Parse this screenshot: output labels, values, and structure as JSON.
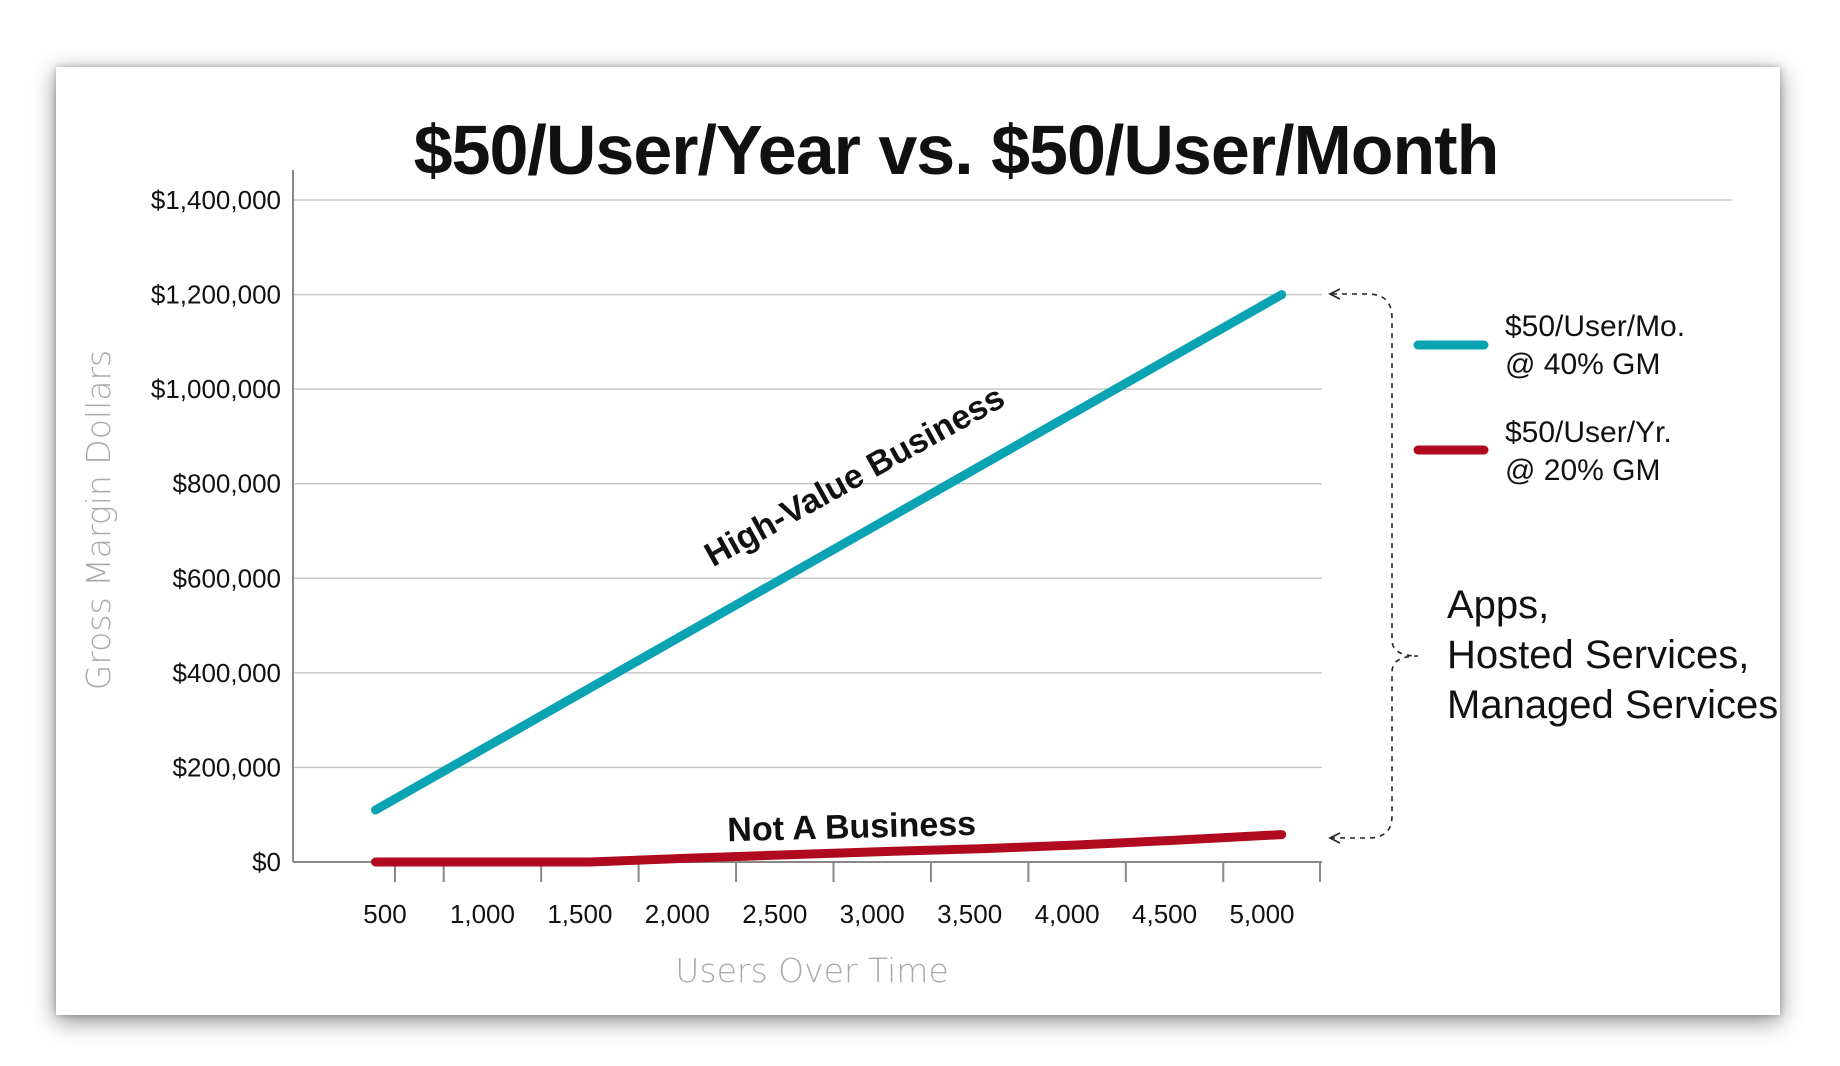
{
  "chart_data": {
    "type": "line",
    "title": "$50/User/Year vs. $50/User/Month",
    "xlabel": "Users Over Time",
    "ylabel": "Gross Margin Dollars",
    "ylim": [
      0,
      1400000
    ],
    "yticks": [
      "$0",
      "$200,000",
      "$400,000",
      "$600,000",
      "$800,000",
      "$1,000,000",
      "$1,200,000",
      "$1,400,000"
    ],
    "categories": [
      "500",
      "1,000",
      "1,500",
      "2,000",
      "2,500",
      "3,000",
      "3,500",
      "4,000",
      "4,500",
      "5,000"
    ],
    "x": [
      500,
      1000,
      1500,
      2000,
      2500,
      3000,
      3500,
      4000,
      4500,
      5000
    ],
    "grid": true,
    "legend_position": "right",
    "series": [
      {
        "name": "$50/User/Mo. @ 40% GM",
        "legend_lines": [
          "$50/User/Mo.",
          "@ 40% GM"
        ],
        "color": "#0aa3b4",
        "x": [
          400,
          5050
        ],
        "values": [
          110000,
          1200000
        ]
      },
      {
        "name": "$50/User/Yr. @ 20% GM",
        "legend_lines": [
          "$50/User/Yr.",
          "@ 20% GM"
        ],
        "color": "#b00a1f",
        "x": [
          400,
          1000,
          1500,
          2000,
          2500,
          3000,
          3500,
          4000,
          4500,
          5050
        ],
        "values": [
          0,
          0,
          0,
          8000,
          15000,
          22000,
          28000,
          36000,
          46000,
          58000
        ]
      }
    ],
    "annotations": {
      "high_value": "High-Value Business",
      "not_business": "Not A Business",
      "bracket_lines": [
        "Apps,",
        "Hosted Services,",
        "Managed Services"
      ]
    }
  }
}
